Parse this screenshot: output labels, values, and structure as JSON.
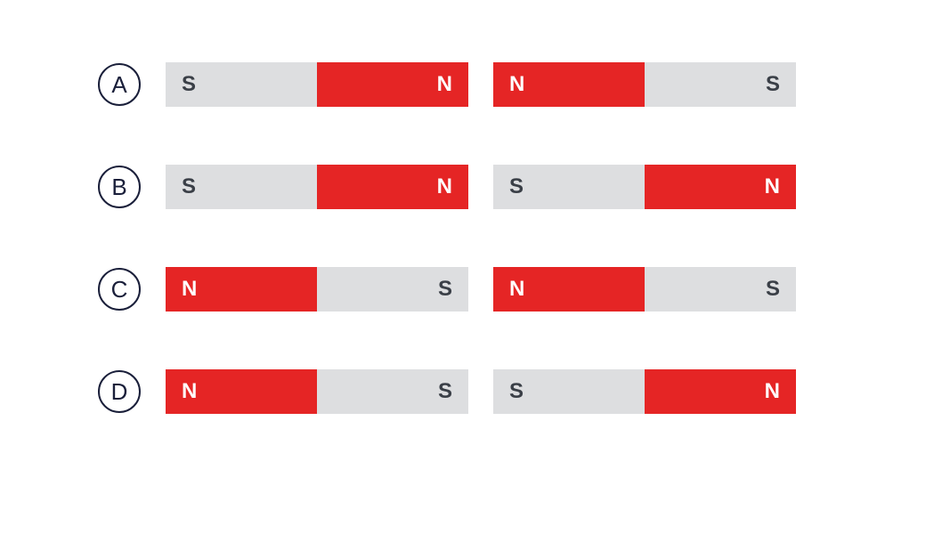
{
  "background_color": "#ffffff",
  "circle_border_color": "#1a1f3a",
  "red_color": "#e52525",
  "grey_color": "#dddee0",
  "red_text_color": "#ffffff",
  "grey_text_color": "#3a3f47",
  "pole_font_size": 24,
  "label_font_size": 26,
  "magnet_width": 340,
  "magnet_height": 50,
  "magnet_gap": 28,
  "row_gap": 65,
  "options": [
    {
      "label": "A",
      "magnets": [
        {
          "left": {
            "letter": "S",
            "color": "grey"
          },
          "right": {
            "letter": "N",
            "color": "red"
          }
        },
        {
          "left": {
            "letter": "N",
            "color": "red"
          },
          "right": {
            "letter": "S",
            "color": "grey"
          }
        }
      ]
    },
    {
      "label": "B",
      "magnets": [
        {
          "left": {
            "letter": "S",
            "color": "grey"
          },
          "right": {
            "letter": "N",
            "color": "red"
          }
        },
        {
          "left": {
            "letter": "S",
            "color": "grey"
          },
          "right": {
            "letter": "N",
            "color": "red"
          }
        }
      ]
    },
    {
      "label": "C",
      "magnets": [
        {
          "left": {
            "letter": "N",
            "color": "red"
          },
          "right": {
            "letter": "S",
            "color": "grey"
          }
        },
        {
          "left": {
            "letter": "N",
            "color": "red"
          },
          "right": {
            "letter": "S",
            "color": "grey"
          }
        }
      ]
    },
    {
      "label": "D",
      "magnets": [
        {
          "left": {
            "letter": "N",
            "color": "red"
          },
          "right": {
            "letter": "S",
            "color": "grey"
          }
        },
        {
          "left": {
            "letter": "S",
            "color": "grey"
          },
          "right": {
            "letter": "N",
            "color": "red"
          }
        }
      ]
    }
  ]
}
